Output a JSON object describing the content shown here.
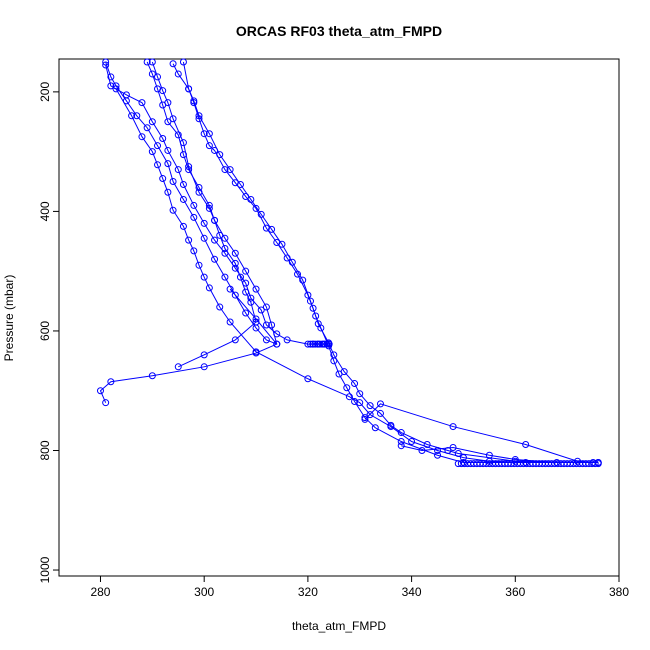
{
  "chart_data": {
    "type": "line",
    "title": "ORCAS RF03 theta_atm_FMPD",
    "xlabel": "theta_atm_FMPD",
    "ylabel": "Pressure (mbar)",
    "xlim": [
      272,
      380
    ],
    "ylim": [
      1010,
      145
    ],
    "y_axis_reversed": true,
    "grid": false,
    "legend": "none",
    "x_ticks": [
      280,
      300,
      320,
      340,
      360,
      380
    ],
    "y_ticks": [
      200,
      400,
      600,
      800,
      1000
    ],
    "color": "#0000ff",
    "marker": "open-circle",
    "series": [
      {
        "values": [
          [
            294,
            153
          ],
          [
            295,
            170
          ],
          [
            297,
            195
          ],
          [
            298,
            215
          ],
          [
            299,
            240
          ],
          [
            301,
            270
          ],
          [
            303,
            305
          ],
          [
            305,
            330
          ],
          [
            307,
            355
          ],
          [
            309,
            380
          ],
          [
            311,
            405
          ],
          [
            313,
            430
          ],
          [
            315,
            455
          ],
          [
            317,
            485
          ],
          [
            319,
            515
          ],
          [
            320.5,
            550
          ],
          [
            321.5,
            575
          ],
          [
            322.5,
            595
          ],
          [
            324,
            625
          ],
          [
            325,
            650
          ],
          [
            326,
            672
          ],
          [
            327.5,
            695
          ],
          [
            329,
            718
          ],
          [
            331,
            745
          ],
          [
            333,
            762
          ],
          [
            338,
            785
          ],
          [
            345,
            808
          ],
          [
            350,
            820
          ],
          [
            376,
            820
          ]
        ]
      },
      {
        "values": [
          [
            289,
            150
          ],
          [
            290,
            170
          ],
          [
            291,
            195
          ],
          [
            292,
            222
          ],
          [
            293,
            250
          ],
          [
            295,
            272
          ],
          [
            296,
            305
          ],
          [
            297,
            330
          ],
          [
            299,
            360
          ],
          [
            301,
            390
          ],
          [
            302,
            415
          ],
          [
            304,
            445
          ],
          [
            306,
            470
          ],
          [
            308,
            500
          ],
          [
            310,
            530
          ],
          [
            312,
            560
          ],
          [
            313,
            590
          ],
          [
            314,
            622
          ],
          [
            310,
            637
          ],
          [
            300,
            660
          ],
          [
            290,
            675
          ],
          [
            282,
            685
          ],
          [
            280,
            700
          ],
          [
            281,
            720
          ]
        ]
      },
      {
        "values": [
          [
            290,
            150
          ],
          [
            291,
            175
          ],
          [
            292,
            198
          ],
          [
            293,
            218
          ],
          [
            294,
            245
          ],
          [
            296,
            285
          ],
          [
            297,
            325
          ],
          [
            299,
            368
          ],
          [
            301,
            395
          ],
          [
            302,
            415
          ],
          [
            303,
            440
          ],
          [
            304,
            462
          ],
          [
            306,
            487
          ],
          [
            307,
            510
          ],
          [
            308,
            535
          ],
          [
            309,
            552
          ],
          [
            310,
            585
          ],
          [
            306,
            615
          ],
          [
            300,
            640
          ],
          [
            295,
            660
          ]
        ]
      },
      {
        "values": [
          [
            281,
            150
          ],
          [
            282,
            175
          ],
          [
            283,
            190
          ],
          [
            285,
            215
          ],
          [
            287,
            240
          ],
          [
            289,
            260
          ],
          [
            291,
            290
          ],
          [
            293,
            320
          ],
          [
            294,
            350
          ],
          [
            296,
            380
          ],
          [
            298,
            410
          ],
          [
            300,
            445
          ],
          [
            302,
            480
          ],
          [
            304,
            510
          ],
          [
            306,
            540
          ],
          [
            308,
            570
          ],
          [
            310,
            595
          ],
          [
            312,
            615
          ],
          [
            314,
            622
          ],
          [
            310,
            580
          ],
          [
            305,
            530
          ]
        ]
      },
      {
        "values": [
          [
            281,
            155
          ],
          [
            282,
            190
          ],
          [
            285,
            205
          ],
          [
            288,
            218
          ],
          [
            290,
            250
          ],
          [
            292,
            278
          ],
          [
            293,
            298
          ],
          [
            295,
            330
          ],
          [
            296,
            355
          ],
          [
            298,
            390
          ],
          [
            300,
            420
          ],
          [
            302,
            448
          ],
          [
            304,
            470
          ],
          [
            306,
            495
          ],
          [
            308,
            520
          ],
          [
            309,
            545
          ],
          [
            311,
            565
          ],
          [
            312,
            590
          ],
          [
            314,
            605
          ],
          [
            316,
            615
          ],
          [
            320,
            622
          ],
          [
            321,
            622
          ],
          [
            322,
            622
          ],
          [
            323,
            622
          ],
          [
            324,
            622
          ]
        ]
      },
      {
        "values": [
          [
            283,
            195
          ],
          [
            286,
            240
          ],
          [
            288,
            275
          ],
          [
            290,
            300
          ],
          [
            291,
            322
          ],
          [
            292,
            345
          ],
          [
            293,
            368
          ],
          [
            294,
            398
          ],
          [
            296,
            425
          ],
          [
            297,
            448
          ],
          [
            298,
            466
          ],
          [
            299,
            490
          ],
          [
            300,
            510
          ],
          [
            301,
            528
          ],
          [
            303,
            560
          ],
          [
            305,
            585
          ],
          [
            310,
            635
          ],
          [
            320,
            680
          ],
          [
            328,
            710
          ],
          [
            330,
            720
          ],
          [
            332,
            740
          ],
          [
            336,
            760
          ],
          [
            340,
            785
          ],
          [
            345,
            800
          ],
          [
            350,
            812
          ],
          [
            355,
            818
          ],
          [
            362,
            820
          ]
        ]
      },
      {
        "values": [
          [
            296,
            150
          ],
          [
            297,
            195
          ],
          [
            298,
            218
          ],
          [
            299,
            245
          ],
          [
            300,
            270
          ],
          [
            301,
            290
          ],
          [
            302,
            298
          ],
          [
            304,
            330
          ],
          [
            306,
            352
          ],
          [
            308,
            375
          ],
          [
            310,
            395
          ],
          [
            312,
            428
          ],
          [
            314,
            452
          ],
          [
            316,
            478
          ],
          [
            318,
            505
          ],
          [
            320,
            540
          ],
          [
            321,
            562
          ],
          [
            322,
            588
          ],
          [
            324,
            620
          ],
          [
            325,
            640
          ],
          [
            327,
            668
          ],
          [
            329,
            688
          ],
          [
            330,
            705
          ],
          [
            332,
            725
          ],
          [
            334,
            738
          ],
          [
            336,
            758
          ],
          [
            338,
            770
          ],
          [
            343,
            790
          ],
          [
            347,
            800
          ],
          [
            349,
            805
          ],
          [
            360,
            818
          ],
          [
            375,
            820
          ]
        ]
      },
      {
        "values": [
          [
            331,
            748
          ],
          [
            334,
            722
          ],
          [
            348,
            760
          ],
          [
            362,
            790
          ],
          [
            372,
            818
          ],
          [
            376,
            820
          ]
        ]
      },
      {
        "values": [
          [
            338,
            792
          ],
          [
            342,
            800
          ],
          [
            348,
            795
          ],
          [
            355,
            808
          ],
          [
            360,
            815
          ],
          [
            368,
            820
          ]
        ]
      }
    ],
    "dense_marker_runs": [
      {
        "y": 822,
        "x_from": 349,
        "x_to": 376,
        "step": 0.6
      },
      {
        "y": 622,
        "x_from": 320.5,
        "x_to": 324.5,
        "step": 0.45
      }
    ]
  }
}
